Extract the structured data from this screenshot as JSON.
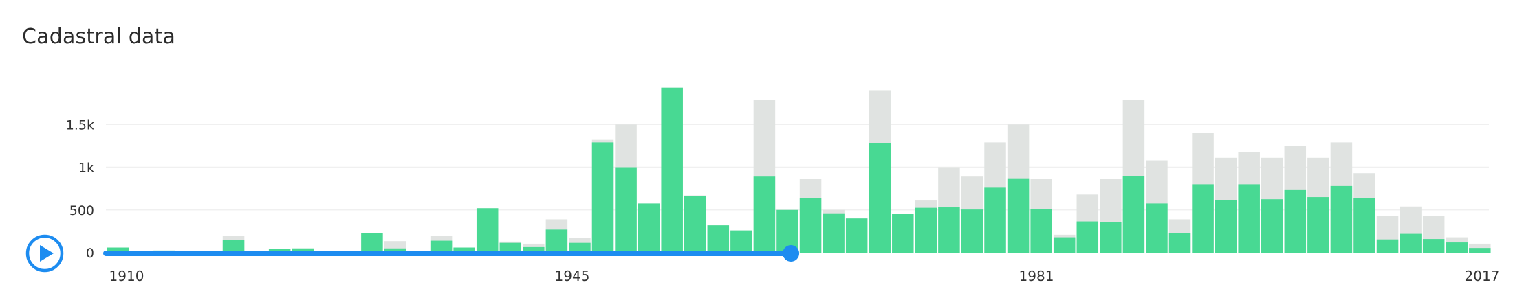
{
  "title": "Cadastral data",
  "controls": {
    "play_icon": "play-icon"
  },
  "colors": {
    "filtered": "#48d993",
    "total": "#e0e3e1",
    "timeline": "#1d8cf0",
    "grid": "#f0f0f0"
  },
  "chart_data": {
    "type": "bar",
    "title": "Cadastral data",
    "xlabel": "",
    "ylabel": "",
    "ylim": [
      0,
      1950
    ],
    "yticks": [
      0,
      500,
      1000,
      1500
    ],
    "ytick_labels": [
      "0",
      "500",
      "1k",
      "1.5k"
    ],
    "xtick_labels": [
      "1910",
      "1945",
      "1981",
      "2017"
    ],
    "x_range": [
      1910,
      2017
    ],
    "grid": true,
    "slider": {
      "range_start": 1910,
      "range_end": 1963
    },
    "series": [
      {
        "role": "total",
        "values": [
          60,
          0,
          25,
          0,
          0,
          200,
          0,
          45,
          50,
          0,
          0,
          225,
          135,
          0,
          200,
          60,
          520,
          130,
          105,
          390,
          175,
          1320,
          1500,
          575,
          1930,
          670,
          320,
          260,
          1790,
          500,
          860,
          500,
          400,
          1900,
          450,
          610,
          1000,
          890,
          1290,
          1500,
          860,
          210,
          680,
          860,
          1790,
          1080,
          390,
          1400,
          1110,
          1180,
          1110,
          1250,
          1110,
          1290,
          930,
          430,
          540,
          430,
          180,
          105
        ]
      },
      {
        "role": "filtered",
        "values": [
          60,
          0,
          25,
          0,
          0,
          150,
          0,
          45,
          50,
          0,
          0,
          225,
          50,
          0,
          140,
          60,
          520,
          115,
          65,
          270,
          115,
          1290,
          1000,
          575,
          1930,
          660,
          320,
          260,
          890,
          500,
          640,
          460,
          400,
          1280,
          450,
          525,
          530,
          505,
          760,
          870,
          510,
          180,
          365,
          360,
          895,
          575,
          230,
          800,
          615,
          800,
          625,
          740,
          650,
          780,
          640,
          155,
          220,
          160,
          120,
          55
        ]
      }
    ]
  }
}
